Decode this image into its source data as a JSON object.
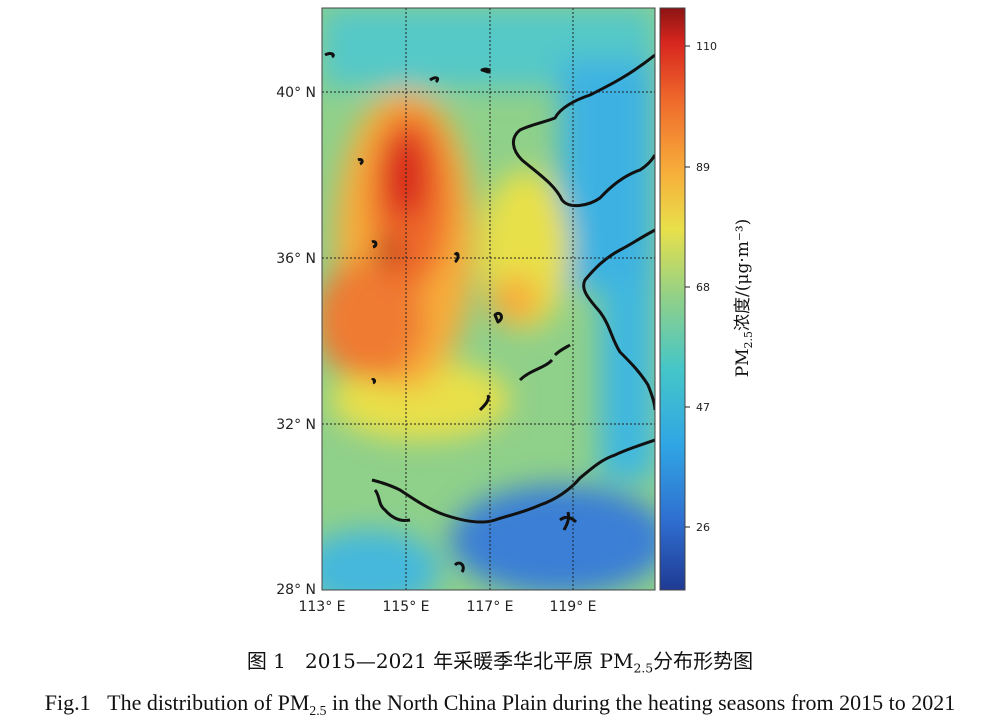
{
  "figure": {
    "caption_cn": {
      "number": "图 1",
      "before": "2015—2021 年采暖季华北平原 PM",
      "sub": "2.5",
      "after": "分布形势图"
    },
    "caption_en": {
      "number": "Fig.1",
      "before": "The distribution of PM",
      "sub": "2.5",
      "after": " in the North China Plain during the heating seasons from 2015 to 2021"
    }
  },
  "map": {
    "lat_labels": [
      "40° N",
      "36° N",
      "32° N",
      "28° N"
    ],
    "lon_labels": [
      "113° E",
      "115° E",
      "117° E",
      "119° E"
    ]
  },
  "colorbar": {
    "ticks": [
      "110",
      "89",
      "68",
      "47",
      "26"
    ],
    "unit_main": "PM",
    "unit_sub": "2.5",
    "unit_rest": "浓度/(μg·m⁻³)",
    "colors": [
      "#1f3a93",
      "#2f6fd0",
      "#30a6e4",
      "#45c6c8",
      "#8fd08a",
      "#e8e04a",
      "#f7ad3a",
      "#ef6a2c",
      "#d8261e",
      "#8c1414"
    ]
  }
}
